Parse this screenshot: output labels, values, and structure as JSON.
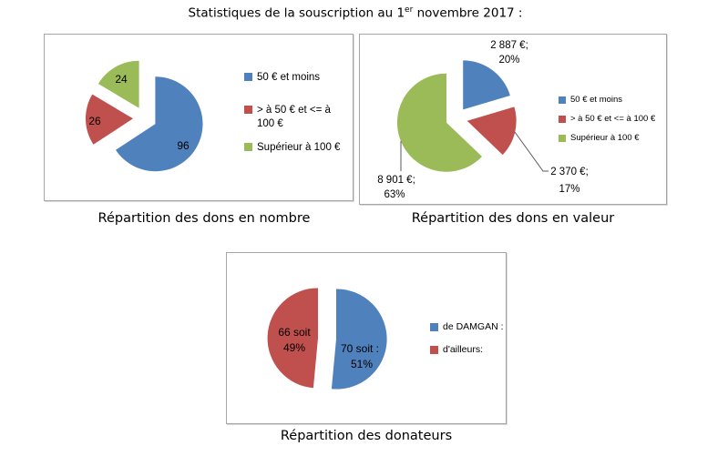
{
  "page_title": {
    "prefix": "Statistiques de la souscription au 1",
    "superscript": "er",
    "suffix": " novembre 2017 :"
  },
  "colors": {
    "blue": "#4f81bd",
    "red": "#c0504d",
    "green": "#9bbb59",
    "panel_border": "#a6a6a6",
    "leader_line": "#595959"
  },
  "chart_data": [
    {
      "id": "dons-en-nombre",
      "type": "pie",
      "title": "Répartition des dons en nombre",
      "legend_position": "right",
      "start_angle_deg": 0,
      "direction": "clockwise",
      "exploded": true,
      "slices": [
        {
          "legend_label": "50 € et moins",
          "value": 96,
          "color": "#4f81bd",
          "data_label_lines": [
            "96"
          ]
        },
        {
          "legend_label": "> à 50 € et <= à 100 €",
          "value": 26,
          "color": "#c0504d",
          "data_label_lines": [
            "26"
          ]
        },
        {
          "legend_label": "Supérieur à 100 €",
          "value": 24,
          "color": "#9bbb59",
          "data_label_lines": [
            "24"
          ]
        }
      ]
    },
    {
      "id": "dons-en-valeur",
      "type": "pie",
      "title": "Répartition des dons en valeur",
      "legend_position": "right",
      "start_angle_deg": 0,
      "direction": "clockwise",
      "exploded": true,
      "slices": [
        {
          "legend_label": "50 € et moins",
          "value": 2887,
          "percent": 20,
          "color": "#4f81bd",
          "data_label_lines": [
            "2 887 €;",
            "20%"
          ]
        },
        {
          "legend_label": "> à 50 € et <= à 100 €",
          "value": 2370,
          "percent": 17,
          "color": "#c0504d",
          "data_label_lines": [
            "2 370 €;",
            "17%"
          ]
        },
        {
          "legend_label": "Supérieur à 100 €",
          "value": 8901,
          "percent": 63,
          "color": "#9bbb59",
          "data_label_lines": [
            "8 901 €;",
            "63%"
          ]
        }
      ]
    },
    {
      "id": "donateurs",
      "type": "pie",
      "title": "Répartition des donateurs",
      "legend_position": "right",
      "start_angle_deg": 0,
      "direction": "clockwise",
      "exploded": true,
      "slices": [
        {
          "legend_label": "de DAMGAN :",
          "value": 70,
          "percent": 51,
          "color": "#4f81bd",
          "data_label_lines": [
            "70 soit :",
            "51%"
          ]
        },
        {
          "legend_label": "d'ailleurs:",
          "value": 66,
          "percent": 49,
          "color": "#c0504d",
          "data_label_lines": [
            "66 soit",
            "49%"
          ]
        }
      ]
    }
  ]
}
